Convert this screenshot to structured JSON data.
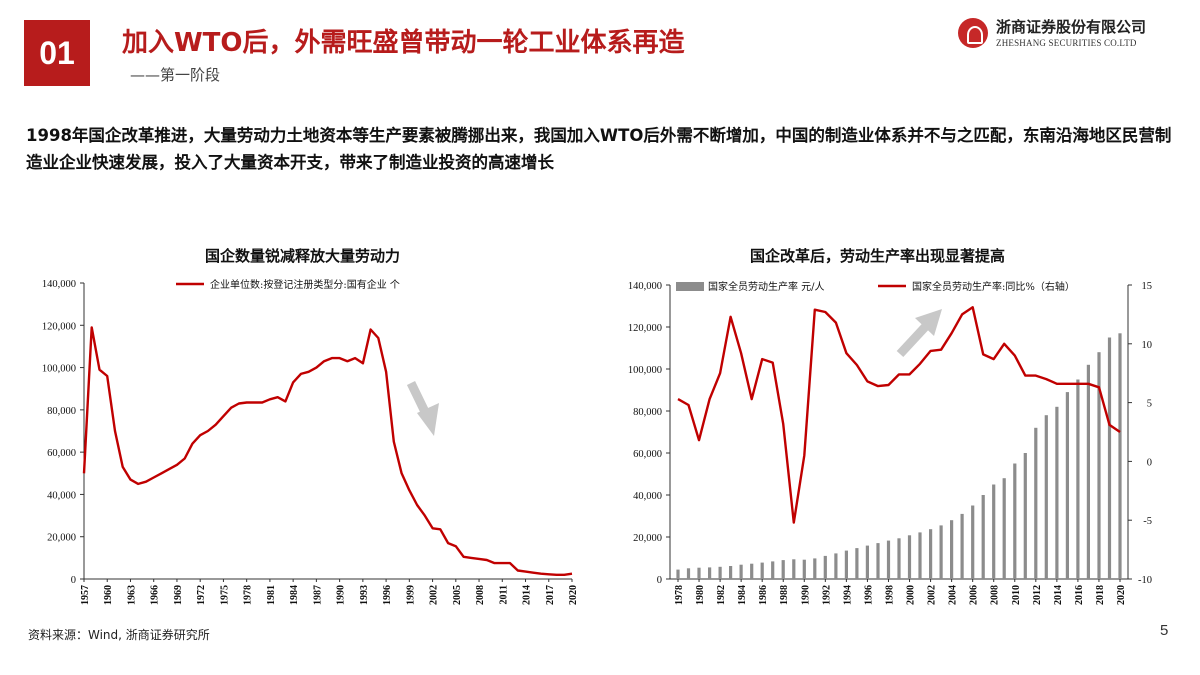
{
  "header": {
    "badge": "01",
    "title": "加入WTO后，外需旺盛曾带动一轮工业体系再造",
    "subtitle": "——第一阶段",
    "logo_cn": "浙商证券股份有限公司",
    "logo_en": "ZHESHANG SECURITIES CO.LTD"
  },
  "intro": "1998年国企改革推进，大量劳动力土地资本等生产要素被腾挪出来，我国加入WTO后外需不断增加，中国的制造业体系并不与之匹配，东南沿海地区民营制造业企业快速发展，投入了大量资本开支，带来了制造业投资的高速增长",
  "footer": {
    "source": "资料来源：Wind, 浙商证券研究所",
    "page": "5"
  },
  "chart_data": [
    {
      "type": "line",
      "title": "国企数量锐减释放大量劳动力",
      "xlabel": "",
      "ylabel": "",
      "ylim": [
        0,
        140000
      ],
      "yticks": [
        0,
        20000,
        40000,
        60000,
        80000,
        100000,
        120000,
        140000
      ],
      "ytick_labels": [
        "0",
        "20,000",
        "40,000",
        "60,000",
        "80,000",
        "100,000",
        "120,000",
        "140,000"
      ],
      "xticks": [
        "1957",
        "1960",
        "1963",
        "1966",
        "1969",
        "1972",
        "1975",
        "1978",
        "1981",
        "1984",
        "1987",
        "1990",
        "1993",
        "1996",
        "1999",
        "2002",
        "2005",
        "2008",
        "2011",
        "2014",
        "2017",
        "2020"
      ],
      "legend": "top",
      "color": "#c00000",
      "annotation": "down-arrow",
      "series": [
        {
          "name": "企业单位数:按登记注册类型分:国有企业 个",
          "x": [
            1957,
            1958,
            1959,
            1960,
            1961,
            1962,
            1963,
            1964,
            1965,
            1966,
            1967,
            1968,
            1969,
            1970,
            1971,
            1972,
            1973,
            1974,
            1975,
            1976,
            1977,
            1978,
            1979,
            1980,
            1981,
            1982,
            1983,
            1984,
            1985,
            1986,
            1987,
            1988,
            1989,
            1990,
            1991,
            1992,
            1993,
            1994,
            1995,
            1996,
            1997,
            1998,
            1999,
            2000,
            2001,
            2002,
            2003,
            2004,
            2005,
            2006,
            2007,
            2008,
            2009,
            2010,
            2011,
            2012,
            2013,
            2014,
            2015,
            2016,
            2017,
            2018,
            2019,
            2020
          ],
          "values": [
            50000,
            119000,
            99000,
            96000,
            70000,
            53000,
            47000,
            45000,
            46000,
            48000,
            50000,
            52000,
            54000,
            57000,
            64000,
            68000,
            70000,
            73000,
            77000,
            81000,
            83000,
            83500,
            83500,
            83500,
            85000,
            86000,
            84000,
            93000,
            97000,
            98000,
            100000,
            103000,
            104500,
            104500,
            103000,
            104500,
            102000,
            118000,
            114000,
            98000,
            65000,
            50000,
            42000,
            35000,
            30000,
            24000,
            23500,
            17000,
            15500,
            10500,
            10000,
            9500,
            9000,
            7500,
            7500,
            7500,
            4000,
            3500,
            3000,
            2500,
            2200,
            2000,
            2000,
            2500
          ]
        }
      ]
    },
    {
      "type": "bar",
      "title": "国企改革后，劳动生产率出现显著提高",
      "xlabel": "",
      "ylabel": "",
      "ylim": [
        0,
        140000
      ],
      "y2lim": [
        -10,
        15
      ],
      "yticks": [
        0,
        20000,
        40000,
        60000,
        80000,
        100000,
        120000,
        140000
      ],
      "ytick_labels": [
        "0",
        "20,000",
        "40,000",
        "60,000",
        "80,000",
        "100,000",
        "120,000",
        "140,000"
      ],
      "y2ticks": [
        -10,
        -5,
        0,
        5,
        10,
        15
      ],
      "xticks": [
        "1978",
        "1980",
        "1982",
        "1984",
        "1986",
        "1988",
        "1990",
        "1992",
        "1994",
        "1996",
        "1998",
        "2000",
        "2002",
        "2004",
        "2006",
        "2008",
        "2010",
        "2012",
        "2014",
        "2016",
        "2018",
        "2020"
      ],
      "legend": "top",
      "annotation": "up-arrow",
      "categories": [
        1978,
        1979,
        1980,
        1981,
        1982,
        1983,
        1984,
        1985,
        1986,
        1987,
        1988,
        1989,
        1990,
        1991,
        1992,
        1993,
        1994,
        1995,
        1996,
        1997,
        1998,
        1999,
        2000,
        2001,
        2002,
        2003,
        2004,
        2005,
        2006,
        2007,
        2008,
        2009,
        2010,
        2011,
        2012,
        2013,
        2014,
        2015,
        2016,
        2017,
        2018,
        2019,
        2020
      ],
      "series": [
        {
          "name": "国家全员劳动生产率 元/人",
          "axis": "left",
          "type": "bar",
          "color": "#8c8c8c",
          "values": [
            4500,
            5100,
            5400,
            5500,
            5800,
            6200,
            6800,
            7300,
            7800,
            8400,
            9000,
            9400,
            9200,
            9800,
            11000,
            12200,
            13500,
            14700,
            15900,
            17100,
            18300,
            19400,
            20800,
            22200,
            23700,
            25500,
            28000,
            31000,
            35000,
            40000,
            45000,
            48000,
            55000,
            60000,
            72000,
            78000,
            82000,
            89000,
            95000,
            102000,
            108000,
            115000,
            117000
          ]
        },
        {
          "name": "国家全员劳动生产率:同比%（右轴）",
          "axis": "right",
          "type": "line",
          "color": "#c00000",
          "values": [
            5.3,
            4.8,
            1.8,
            5.3,
            7.5,
            12.3,
            9.2,
            5.3,
            8.7,
            8.4,
            3.2,
            -5.2,
            0.5,
            12.9,
            12.7,
            11.8,
            9.2,
            8.2,
            6.8,
            6.4,
            6.5,
            7.4,
            7.4,
            8.3,
            9.4,
            9.5,
            10.9,
            12.5,
            13.1,
            9.1,
            8.7,
            10.0,
            9.0,
            7.3,
            7.3,
            7.0,
            6.6,
            6.6,
            6.6,
            6.6,
            6.3,
            3.1,
            2.5
          ]
        }
      ]
    }
  ]
}
